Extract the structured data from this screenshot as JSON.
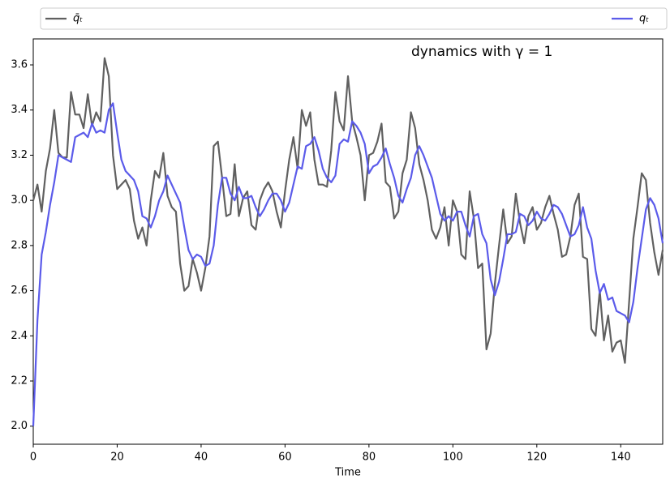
{
  "chart_data": {
    "type": "line",
    "annotation": "dynamics with γ = 1",
    "xlabel": "Time",
    "legend": "top",
    "xlim": [
      0,
      150
    ],
    "ylim": [
      1.92,
      3.715
    ],
    "xticks": [
      0,
      20,
      40,
      60,
      80,
      100,
      120,
      140
    ],
    "yticks": [
      {
        "value": 2.0,
        "label": "2.0"
      },
      2.2,
      2.4,
      2.6,
      2.8,
      {
        "value": 3.0,
        "label": "3.0"
      },
      3.2,
      3.4,
      3.6
    ],
    "x": [
      0,
      1,
      2,
      3,
      4,
      5,
      6,
      7,
      8,
      9,
      10,
      11,
      12,
      13,
      14,
      15,
      16,
      17,
      18,
      19,
      20,
      21,
      22,
      23,
      24,
      25,
      26,
      27,
      28,
      29,
      30,
      31,
      32,
      33,
      34,
      35,
      36,
      37,
      38,
      39,
      40,
      41,
      42,
      43,
      44,
      45,
      46,
      47,
      48,
      49,
      50,
      51,
      52,
      53,
      54,
      55,
      56,
      57,
      58,
      59,
      60,
      61,
      62,
      63,
      64,
      65,
      66,
      67,
      68,
      69,
      70,
      71,
      72,
      73,
      74,
      75,
      76,
      77,
      78,
      79,
      80,
      81,
      82,
      83,
      84,
      85,
      86,
      87,
      88,
      89,
      90,
      91,
      92,
      93,
      94,
      95,
      96,
      97,
      98,
      99,
      100,
      101,
      102,
      103,
      104,
      105,
      106,
      107,
      108,
      109,
      110,
      111,
      112,
      113,
      114,
      115,
      116,
      117,
      118,
      119,
      120,
      121,
      122,
      123,
      124,
      125,
      126,
      127,
      128,
      129,
      130,
      131,
      132,
      133,
      134,
      135,
      136,
      137,
      138,
      139,
      140,
      141,
      142,
      143,
      144,
      145,
      146,
      147,
      148,
      149,
      150
    ],
    "series": [
      {
        "name": "q̄ₜ",
        "color": "#606060",
        "values": [
          3.0,
          3.07,
          2.95,
          3.13,
          3.23,
          3.4,
          3.21,
          3.19,
          3.19,
          3.48,
          3.38,
          3.38,
          3.32,
          3.47,
          3.33,
          3.39,
          3.35,
          3.63,
          3.55,
          3.2,
          3.05,
          3.07,
          3.09,
          3.05,
          2.91,
          2.83,
          2.88,
          2.8,
          3.0,
          3.13,
          3.1,
          3.21,
          3.02,
          2.97,
          2.95,
          2.72,
          2.6,
          2.62,
          2.74,
          2.68,
          2.6,
          2.7,
          2.84,
          3.24,
          3.26,
          3.1,
          2.93,
          2.94,
          3.16,
          2.93,
          3.01,
          3.04,
          2.89,
          2.87,
          3.0,
          3.05,
          3.08,
          3.04,
          2.95,
          2.88,
          3.04,
          3.18,
          3.28,
          3.14,
          3.4,
          3.33,
          3.39,
          3.18,
          3.07,
          3.07,
          3.06,
          3.22,
          3.48,
          3.35,
          3.31,
          3.55,
          3.35,
          3.28,
          3.2,
          3.0,
          3.2,
          3.21,
          3.26,
          3.34,
          3.08,
          3.06,
          2.92,
          2.95,
          3.12,
          3.18,
          3.39,
          3.32,
          3.16,
          3.09,
          3.0,
          2.87,
          2.83,
          2.88,
          2.97,
          2.8,
          3.0,
          2.95,
          2.76,
          2.74,
          3.04,
          2.92,
          2.7,
          2.72,
          2.34,
          2.41,
          2.63,
          2.8,
          2.96,
          2.81,
          2.84,
          3.03,
          2.9,
          2.81,
          2.93,
          2.97,
          2.87,
          2.9,
          2.97,
          3.02,
          2.94,
          2.87,
          2.75,
          2.76,
          2.84,
          2.98,
          3.03,
          2.75,
          2.74,
          2.43,
          2.4,
          2.6,
          2.38,
          2.49,
          2.33,
          2.37,
          2.38,
          2.28,
          2.55,
          2.83,
          2.97,
          3.12,
          3.09,
          2.9,
          2.77,
          2.67,
          2.78
        ]
      },
      {
        "name": "qₜ",
        "color": "#5b5bea",
        "values": [
          2.0,
          2.47,
          2.76,
          2.86,
          2.98,
          3.08,
          3.2,
          3.19,
          3.18,
          3.17,
          3.28,
          3.29,
          3.3,
          3.28,
          3.34,
          3.3,
          3.31,
          3.3,
          3.4,
          3.43,
          3.3,
          3.18,
          3.13,
          3.11,
          3.09,
          3.04,
          2.93,
          2.92,
          2.88,
          2.93,
          3.0,
          3.04,
          3.11,
          3.07,
          3.03,
          2.99,
          2.88,
          2.78,
          2.74,
          2.76,
          2.75,
          2.71,
          2.72,
          2.8,
          2.98,
          3.1,
          3.1,
          3.03,
          3.0,
          3.06,
          3.01,
          3.01,
          3.02,
          2.97,
          2.93,
          2.96,
          3.0,
          3.03,
          3.03,
          3.0,
          2.95,
          2.99,
          3.07,
          3.15,
          3.14,
          3.24,
          3.25,
          3.28,
          3.22,
          3.14,
          3.1,
          3.08,
          3.11,
          3.25,
          3.27,
          3.26,
          3.35,
          3.33,
          3.3,
          3.25,
          3.12,
          3.15,
          3.16,
          3.19,
          3.23,
          3.16,
          3.1,
          3.02,
          2.99,
          3.05,
          3.1,
          3.2,
          3.24,
          3.2,
          3.15,
          3.1,
          3.02,
          2.94,
          2.91,
          2.93,
          2.91,
          2.95,
          2.95,
          2.89,
          2.84,
          2.93,
          2.94,
          2.85,
          2.81,
          2.65,
          2.58,
          2.64,
          2.74,
          2.85,
          2.85,
          2.86,
          2.94,
          2.93,
          2.89,
          2.91,
          2.95,
          2.92,
          2.91,
          2.94,
          2.98,
          2.97,
          2.94,
          2.89,
          2.84,
          2.85,
          2.89,
          2.97,
          2.88,
          2.83,
          2.69,
          2.59,
          2.63,
          2.56,
          2.57,
          2.51,
          2.5,
          2.49,
          2.46,
          2.55,
          2.7,
          2.83,
          2.96,
          3.01,
          2.98,
          2.92,
          2.81
        ]
      }
    ]
  }
}
